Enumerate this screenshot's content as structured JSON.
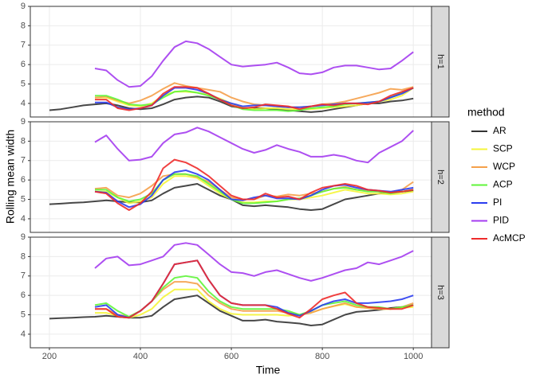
{
  "chart_data": {
    "type": "line",
    "x_label": "Time",
    "y_label": "Rolling mean width",
    "legend_title": "method",
    "x": [
      200,
      225,
      250,
      275,
      300,
      325,
      350,
      375,
      400,
      425,
      450,
      475,
      500,
      525,
      550,
      575,
      600,
      625,
      650,
      675,
      700,
      725,
      750,
      775,
      800,
      825,
      850,
      875,
      900,
      925,
      950,
      975,
      1000
    ],
    "xlim": [
      158,
      1040
    ],
    "xticks": [
      200,
      400,
      600,
      800,
      1000
    ],
    "ylim": [
      3.3,
      9
    ],
    "yticks": [
      4,
      5,
      6,
      7,
      8,
      9
    ],
    "grid": true,
    "series": [
      {
        "name": "AR",
        "color": "#333333"
      },
      {
        "name": "SCP",
        "color": "#f5f53a"
      },
      {
        "name": "WCP",
        "color": "#f5a04a"
      },
      {
        "name": "ACP",
        "color": "#5ff53a"
      },
      {
        "name": "PI",
        "color": "#2a3cf0"
      },
      {
        "name": "PID",
        "color": "#a43cf0"
      },
      {
        "name": "AcMCP",
        "color": "#ee2b2b"
      }
    ],
    "facets": [
      {
        "label": "h=1",
        "values": [
          [
            3.65,
            3.7,
            3.8,
            3.9,
            3.95,
            4.0,
            3.9,
            3.75,
            3.7,
            3.75,
            3.95,
            4.2,
            4.3,
            4.35,
            4.3,
            4.1,
            3.85,
            3.75,
            3.75,
            3.75,
            3.7,
            3.65,
            3.6,
            3.55,
            3.6,
            3.7,
            3.8,
            3.9,
            4.0,
            4.0,
            4.1,
            4.15,
            4.25
          ],
          [
            null,
            null,
            null,
            null,
            4.3,
            4.3,
            4.1,
            3.9,
            3.85,
            4.0,
            4.4,
            4.6,
            4.6,
            4.55,
            4.45,
            4.25,
            4.0,
            3.8,
            3.7,
            3.75,
            3.75,
            3.7,
            3.7,
            3.7,
            3.75,
            3.8,
            3.85,
            3.9,
            4.0,
            4.1,
            4.2,
            4.4,
            4.8
          ],
          [
            null,
            null,
            null,
            null,
            4.3,
            4.35,
            4.15,
            4.0,
            4.15,
            4.4,
            4.75,
            5.05,
            4.9,
            4.8,
            4.7,
            4.6,
            4.3,
            4.1,
            3.95,
            3.9,
            3.85,
            3.8,
            3.8,
            3.85,
            3.95,
            4.0,
            4.1,
            4.25,
            4.4,
            4.55,
            4.75,
            4.7,
            4.85
          ],
          [
            null,
            null,
            null,
            null,
            4.4,
            4.4,
            4.2,
            3.95,
            3.9,
            3.95,
            4.3,
            4.6,
            4.65,
            4.55,
            4.4,
            4.2,
            3.9,
            3.7,
            3.65,
            3.65,
            3.65,
            3.6,
            3.65,
            3.75,
            3.8,
            3.85,
            3.95,
            4.0,
            4.05,
            4.1,
            4.3,
            4.55,
            4.8
          ],
          [
            null,
            null,
            null,
            null,
            4.05,
            4.05,
            3.8,
            3.7,
            3.75,
            3.9,
            4.4,
            4.8,
            4.8,
            4.7,
            4.5,
            4.2,
            4.0,
            3.85,
            3.9,
            3.9,
            3.85,
            3.8,
            3.8,
            3.85,
            3.9,
            3.95,
            4.0,
            4.0,
            4.05,
            4.1,
            4.3,
            4.5,
            4.8
          ],
          [
            null,
            null,
            null,
            null,
            5.8,
            5.7,
            5.2,
            4.85,
            4.9,
            5.4,
            6.2,
            6.9,
            7.2,
            7.1,
            6.8,
            6.4,
            6.0,
            5.9,
            5.95,
            6.0,
            6.1,
            5.85,
            5.55,
            5.5,
            5.6,
            5.85,
            5.95,
            5.95,
            5.85,
            5.75,
            5.8,
            6.2,
            6.65
          ],
          [
            null,
            null,
            null,
            null,
            4.2,
            4.2,
            3.75,
            3.65,
            3.75,
            3.9,
            4.5,
            4.85,
            4.85,
            4.8,
            4.5,
            4.2,
            3.9,
            3.75,
            3.8,
            3.95,
            3.9,
            3.85,
            3.7,
            3.85,
            3.95,
            3.9,
            4.0,
            4.0,
            3.95,
            4.1,
            4.4,
            4.6,
            4.8
          ]
        ]
      },
      {
        "label": "h=2",
        "values": [
          [
            4.75,
            4.78,
            4.82,
            4.85,
            4.9,
            4.95,
            4.9,
            4.85,
            4.85,
            4.95,
            5.3,
            5.6,
            5.7,
            5.8,
            5.5,
            5.2,
            5.0,
            4.7,
            4.65,
            4.7,
            4.65,
            4.6,
            4.5,
            4.45,
            4.5,
            4.75,
            5.0,
            5.1,
            5.2,
            5.3,
            5.35,
            5.4,
            5.45
          ],
          [
            null,
            null,
            null,
            null,
            5.4,
            5.4,
            5.1,
            4.8,
            4.9,
            5.1,
            5.8,
            6.2,
            6.2,
            6.1,
            5.7,
            5.3,
            5.0,
            4.85,
            4.85,
            4.9,
            4.9,
            5.0,
            5.0,
            5.1,
            5.2,
            5.35,
            5.5,
            5.4,
            5.3,
            5.3,
            5.25,
            5.3,
            5.4
          ],
          [
            null,
            null,
            null,
            null,
            5.55,
            5.6,
            5.2,
            5.1,
            5.3,
            5.7,
            6.2,
            6.3,
            6.3,
            6.15,
            5.9,
            5.5,
            5.1,
            5.0,
            5.0,
            5.2,
            5.15,
            5.25,
            5.2,
            5.3,
            5.4,
            5.55,
            5.65,
            5.5,
            5.45,
            5.4,
            5.35,
            5.5,
            5.9
          ],
          [
            null,
            null,
            null,
            null,
            5.5,
            5.5,
            5.1,
            4.9,
            5.0,
            5.3,
            6.0,
            6.3,
            6.3,
            6.2,
            5.8,
            5.4,
            5.0,
            4.8,
            4.8,
            4.85,
            4.9,
            5.0,
            5.05,
            5.2,
            5.4,
            5.55,
            5.6,
            5.5,
            5.4,
            5.4,
            5.3,
            5.4,
            5.5
          ],
          [
            null,
            null,
            null,
            null,
            5.4,
            5.35,
            4.9,
            4.6,
            4.75,
            5.2,
            6.0,
            6.4,
            6.5,
            6.3,
            6.0,
            5.5,
            5.0,
            4.95,
            5.1,
            5.2,
            5.05,
            5.05,
            5.0,
            5.2,
            5.5,
            5.7,
            5.75,
            5.6,
            5.5,
            5.45,
            5.4,
            5.5,
            5.6
          ],
          [
            null,
            null,
            null,
            null,
            7.95,
            8.3,
            7.6,
            7.0,
            7.05,
            7.2,
            7.9,
            8.35,
            8.45,
            8.7,
            8.5,
            8.2,
            7.9,
            7.6,
            7.4,
            7.55,
            7.8,
            7.6,
            7.45,
            7.2,
            7.2,
            7.3,
            7.2,
            7.0,
            6.9,
            7.4,
            7.7,
            8.0,
            8.55
          ],
          [
            null,
            null,
            null,
            null,
            5.4,
            5.3,
            4.8,
            4.45,
            4.8,
            5.4,
            6.6,
            7.05,
            6.9,
            6.6,
            6.2,
            5.7,
            5.2,
            5.0,
            5.0,
            5.3,
            5.1,
            5.15,
            5.0,
            5.35,
            5.6,
            5.7,
            5.8,
            5.7,
            5.5,
            5.45,
            5.35,
            5.4,
            5.5
          ]
        ]
      },
      {
        "label": "h=3",
        "values": [
          [
            4.8,
            4.83,
            4.85,
            4.88,
            4.9,
            4.95,
            4.9,
            4.85,
            4.85,
            4.95,
            5.4,
            5.8,
            5.9,
            6.0,
            5.6,
            5.2,
            4.95,
            4.7,
            4.7,
            4.75,
            4.65,
            4.6,
            4.55,
            4.45,
            4.5,
            4.75,
            5.0,
            5.15,
            5.2,
            5.25,
            5.35,
            5.4,
            5.5
          ],
          [
            null,
            null,
            null,
            null,
            5.1,
            5.1,
            4.95,
            4.85,
            5.0,
            5.3,
            5.9,
            6.3,
            6.3,
            6.3,
            5.7,
            5.3,
            5.05,
            5.0,
            5.0,
            5.0,
            5.0,
            4.95,
            5.0,
            5.1,
            5.3,
            5.45,
            5.55,
            5.4,
            5.35,
            5.3,
            5.3,
            5.35,
            5.4
          ],
          [
            null,
            null,
            null,
            null,
            5.3,
            5.3,
            5.0,
            4.9,
            5.2,
            5.7,
            6.3,
            6.7,
            6.7,
            6.6,
            6.0,
            5.6,
            5.3,
            5.2,
            5.2,
            5.2,
            5.2,
            5.1,
            5.0,
            5.1,
            5.3,
            5.45,
            5.6,
            5.4,
            5.35,
            5.3,
            5.3,
            5.4,
            5.6
          ],
          [
            null,
            null,
            null,
            null,
            5.5,
            5.6,
            5.2,
            4.9,
            5.2,
            5.7,
            6.4,
            6.9,
            7.0,
            6.9,
            6.2,
            5.7,
            5.4,
            5.3,
            5.3,
            5.3,
            5.3,
            5.2,
            5.0,
            5.2,
            5.5,
            5.6,
            5.7,
            5.5,
            5.4,
            5.4,
            5.3,
            5.4,
            5.5
          ],
          [
            null,
            null,
            null,
            null,
            5.4,
            5.5,
            5.0,
            4.85,
            5.2,
            5.7,
            6.6,
            7.6,
            7.7,
            7.8,
            6.8,
            6.0,
            5.6,
            5.5,
            5.5,
            5.5,
            5.4,
            5.1,
            4.95,
            5.2,
            5.5,
            5.7,
            5.8,
            5.6,
            5.6,
            5.65,
            5.7,
            5.8,
            6.0
          ],
          [
            null,
            null,
            null,
            null,
            7.4,
            7.9,
            8.0,
            7.55,
            7.6,
            7.8,
            8.0,
            8.6,
            8.7,
            8.6,
            8.1,
            7.6,
            7.2,
            7.15,
            7.0,
            7.2,
            7.3,
            7.1,
            6.9,
            6.75,
            6.9,
            7.1,
            7.3,
            7.4,
            7.7,
            7.6,
            7.8,
            8.0,
            8.3
          ],
          [
            null,
            null,
            null,
            null,
            5.3,
            5.3,
            4.9,
            4.85,
            5.2,
            5.7,
            6.6,
            7.6,
            7.7,
            7.8,
            6.8,
            6.0,
            5.6,
            5.5,
            5.5,
            5.5,
            5.3,
            5.05,
            4.85,
            5.3,
            5.8,
            6.0,
            6.15,
            5.6,
            5.4,
            5.35,
            5.3,
            5.3,
            5.5
          ]
        ]
      }
    ]
  }
}
